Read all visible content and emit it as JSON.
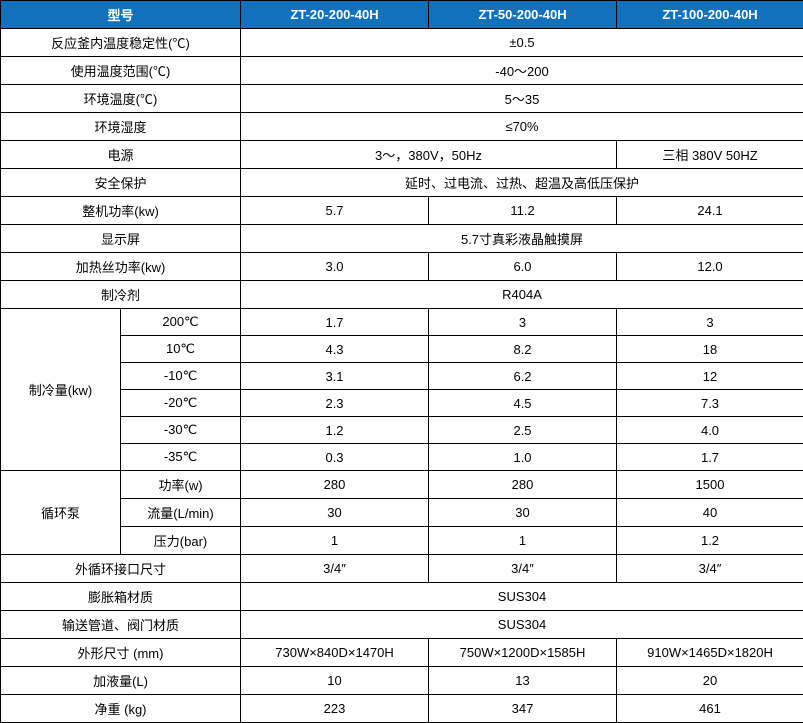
{
  "type": "table",
  "header_bg": "#1171bb",
  "header_color": "#ffffff",
  "border_color": "#000000",
  "font_size": 13,
  "columns_width": [
    120,
    120,
    188,
    188,
    187
  ],
  "header": {
    "label": "型号",
    "models": [
      "ZT-20-200-40H",
      "ZT-50-200-40H",
      "ZT-100-200-40H"
    ]
  },
  "rows": [
    {
      "label": "反应釜内温度稳定性(℃)",
      "span": 3,
      "value": "±0.5"
    },
    {
      "label": "使用温度范围(℃)",
      "span": 3,
      "value": "-40～200"
    },
    {
      "label": "环境温度(℃)",
      "span": 3,
      "value": "5～35"
    },
    {
      "label": "环境湿度",
      "span": 3,
      "value": "≤70%"
    },
    {
      "label": "电源",
      "values": [
        {
          "span": 2,
          "text": "3～，380V，50Hz"
        },
        {
          "span": 1,
          "text": "三相 380V 50HZ"
        }
      ]
    },
    {
      "label": "安全保护",
      "span": 3,
      "value": "延时、过电流、过热、超温及高低压保护"
    },
    {
      "label": "整机功率(kw)",
      "cells": [
        "5.7",
        "11.2",
        "24.1"
      ]
    },
    {
      "label": "显示屏",
      "span": 3,
      "value": "5.7寸真彩液晶触摸屏"
    },
    {
      "label": "加热丝功率(kw)",
      "cells": [
        "3.0",
        "6.0",
        "12.0"
      ]
    },
    {
      "label": "制冷剂",
      "span": 3,
      "value": "R404A"
    }
  ],
  "cooling": {
    "label": "制冷量(kw)",
    "rows": [
      {
        "temp": "200℃",
        "v": [
          "1.7",
          "3",
          "3"
        ]
      },
      {
        "temp": "10℃",
        "v": [
          "4.3",
          "8.2",
          "18"
        ]
      },
      {
        "temp": "-10℃",
        "v": [
          "3.1",
          "6.2",
          "12"
        ]
      },
      {
        "temp": "-20℃",
        "v": [
          "2.3",
          "4.5",
          "7.3"
        ]
      },
      {
        "temp": "-30℃",
        "v": [
          "1.2",
          "2.5",
          "4.0"
        ]
      },
      {
        "temp": "-35℃",
        "v": [
          "0.3",
          "1.0",
          "1.7"
        ]
      }
    ]
  },
  "pump": {
    "label": "循环泵",
    "rows": [
      {
        "param": "功率(w)",
        "v": [
          "280",
          "280",
          "1500"
        ]
      },
      {
        "param": "流量(L/min)",
        "v": [
          "30",
          "30",
          "40"
        ]
      },
      {
        "param": "压力(bar)",
        "v": [
          "1",
          "1",
          "1.2"
        ]
      }
    ]
  },
  "tail": [
    {
      "label": "外循环接口尺寸",
      "cells": [
        "3/4″",
        "3/4″",
        "3/4″"
      ]
    },
    {
      "label": "膨胀箱材质",
      "span": 3,
      "value": "SUS304"
    },
    {
      "label": "输送管道、阀门材质",
      "span": 3,
      "value": "SUS304"
    },
    {
      "label": "外形尺寸 (mm)",
      "cells": [
        "730W×840D×1470H",
        "750W×1200D×1585H",
        "910W×1465D×1820H"
      ]
    },
    {
      "label": "加液量(L)",
      "cells": [
        "10",
        "13",
        "20"
      ]
    },
    {
      "label": "净重  (kg)",
      "cells": [
        "223",
        "347",
        "461"
      ]
    }
  ]
}
